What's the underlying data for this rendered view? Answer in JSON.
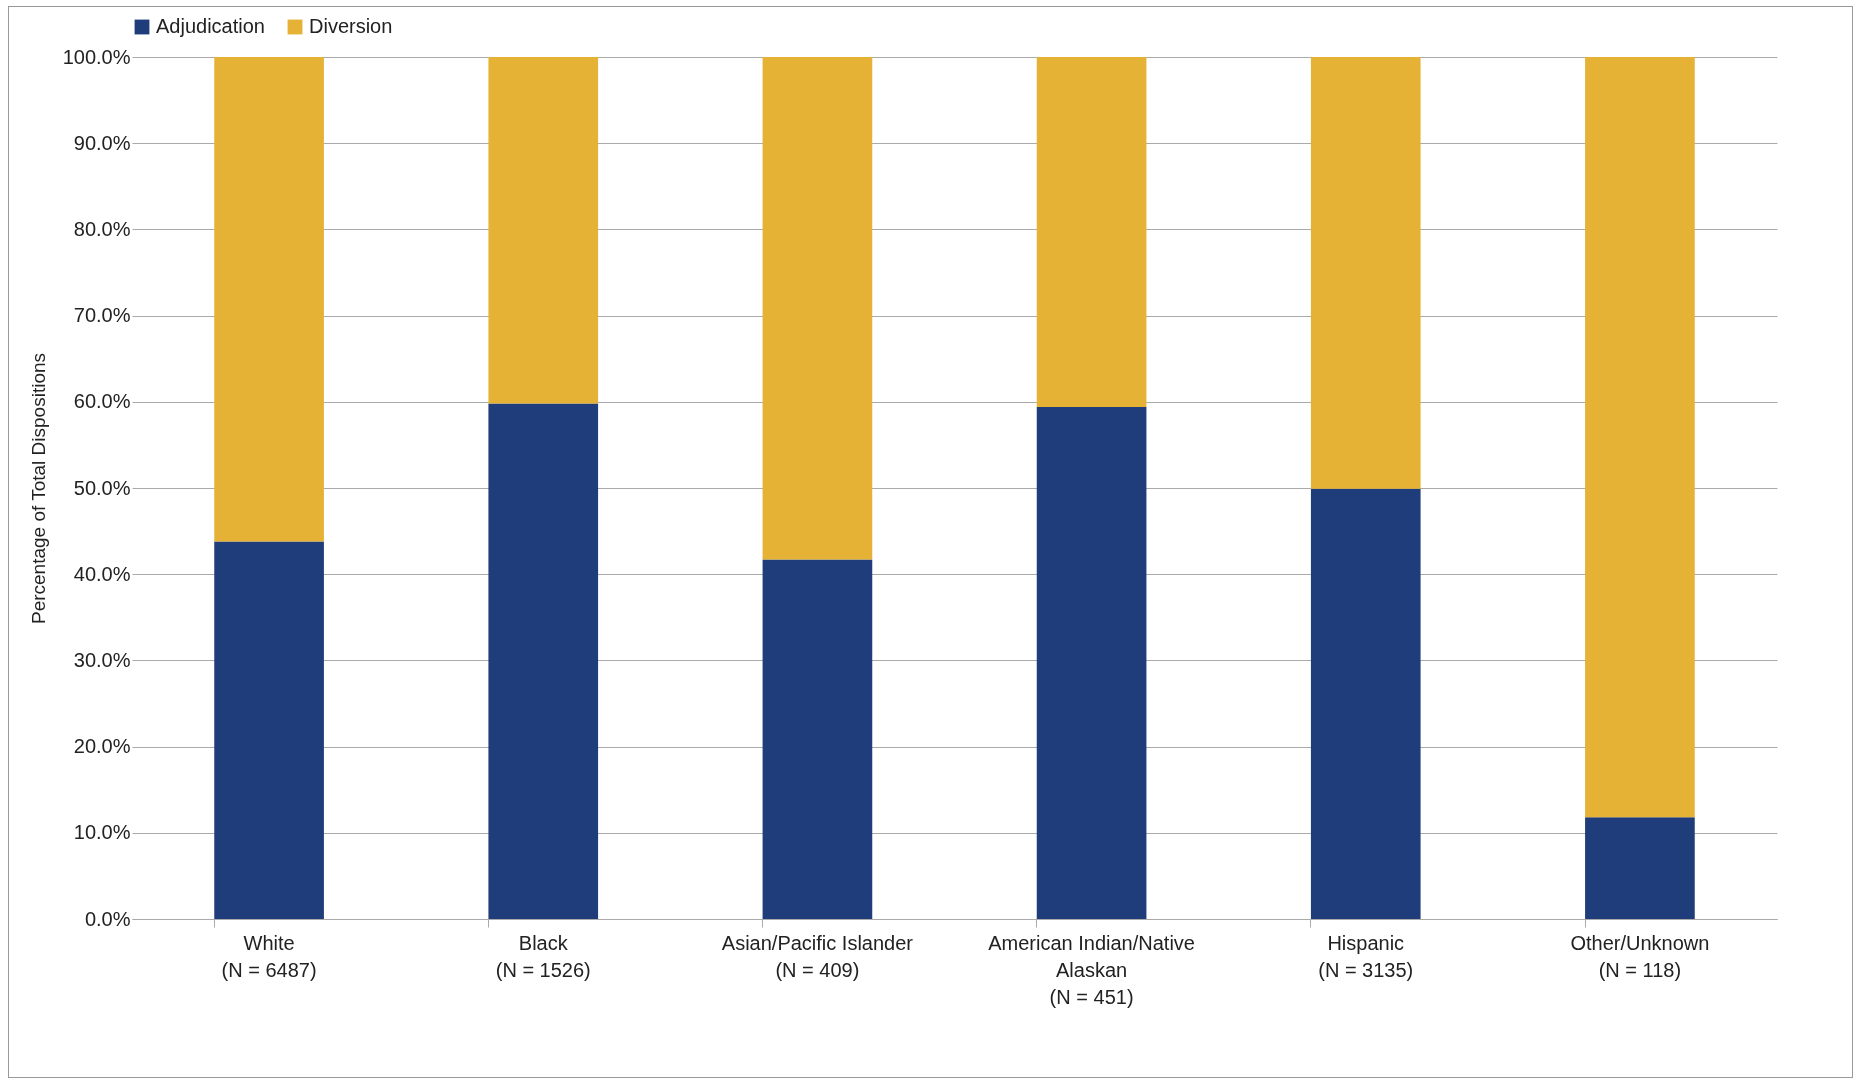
{
  "chart_data": {
    "type": "bar",
    "stacked": true,
    "ylabel": "Percentage of Total Dispositions",
    "categories": [
      "White\n(N = 6487)",
      "Black\n(N = 1526)",
      "Asian/Pacific Islander\n(N = 409)",
      "American Indian/Native\nAlaskan\n(N = 451)",
      "Hispanic\n(N = 3135)",
      "Other/Unknown\n(N = 118)"
    ],
    "series": [
      {
        "name": "Adjudication",
        "color": "#1f3d7a",
        "values": [
          43.8,
          59.8,
          41.7,
          59.4,
          49.9,
          11.8
        ]
      },
      {
        "name": "Diversion",
        "color": "#e5b235",
        "values": [
          56.2,
          40.2,
          58.3,
          40.6,
          50.1,
          88.2
        ]
      }
    ],
    "ylim": [
      0,
      100
    ],
    "yticks": [
      {
        "value": 0,
        "label": "0.0%"
      },
      {
        "value": 10,
        "label": "10.0%"
      },
      {
        "value": 20,
        "label": "20.0%"
      },
      {
        "value": 30,
        "label": "30.0%"
      },
      {
        "value": 40,
        "label": "40.0%"
      },
      {
        "value": 50,
        "label": "50.0%"
      },
      {
        "value": 60,
        "label": "60.0%"
      },
      {
        "value": 70,
        "label": "70.0%"
      },
      {
        "value": 80,
        "label": "80.0%"
      },
      {
        "value": 90,
        "label": "90.0%"
      },
      {
        "value": 100,
        "label": "100.0%"
      }
    ],
    "grid": "y",
    "legend": "top"
  }
}
